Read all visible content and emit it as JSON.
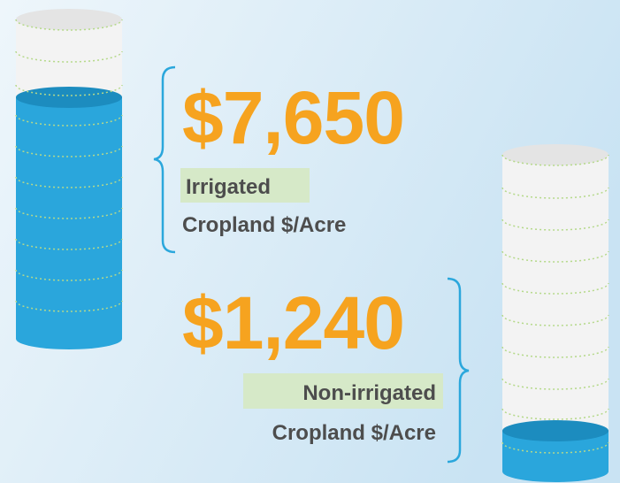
{
  "items": [
    {
      "value": "$7,650",
      "highlight": "Irrigated",
      "label": "Cropland $/Acre"
    },
    {
      "value": "$1,240",
      "highlight": "Non-irrigated",
      "label": "Cropland $/Acre"
    }
  ]
}
